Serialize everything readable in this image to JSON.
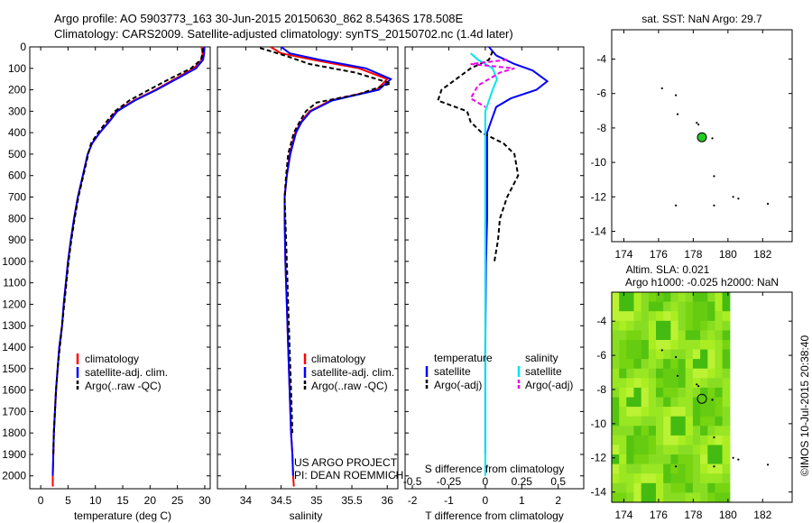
{
  "header": {
    "line1": "Argo profile: AO 5903773_163 30-Jun-2015 20150630_862 8.5436S 178.508E",
    "line2": "Climatology: CARS2009. Satellite-adjusted climatology: synTS_20150702.nc (1.4d later)"
  },
  "credit": {
    "project": "US ARGO PROJECT",
    "pi": "PI: DEAN ROEMMICH"
  },
  "stamp": "©IMOS 10-Jul-2015 20:38:40",
  "colors": {
    "clim": "#ff0000",
    "sat": "#0000ff",
    "argo": "#000000",
    "sat_s": "#00e5ee",
    "argo_s": "#ee00ee",
    "dot": "#22cc22"
  },
  "chart_data": [
    {
      "type": "line",
      "id": "temperature",
      "xlabel": "temperature (deg C)",
      "ylabel": "",
      "xlim": [
        -2,
        31
      ],
      "ylim": [
        2060,
        0
      ],
      "xticks": [
        0,
        5,
        10,
        15,
        20,
        25,
        30
      ],
      "yticks": [
        0,
        100,
        200,
        300,
        400,
        500,
        600,
        700,
        800,
        900,
        1000,
        1100,
        1200,
        1300,
        1400,
        1500,
        1600,
        1700,
        1800,
        1900,
        2000
      ],
      "legend": [
        "climatology",
        "satellite-adj. clim.",
        "Argo(..raw -QC)"
      ],
      "series": [
        {
          "name": "climatology",
          "role": "clim",
          "x": [
            29.4,
            29.6,
            29.5,
            28.0,
            24.5,
            21.0,
            17.0,
            13.8,
            12.4,
            10.8,
            9.4,
            8.6,
            7.7,
            6.8,
            6.1,
            5.5,
            5.0,
            4.6,
            4.2,
            3.9,
            3.4,
            3.1,
            2.8,
            2.6,
            2.4,
            2.3,
            2.2,
            2.2
          ],
          "y": [
            0,
            30,
            60,
            100,
            150,
            200,
            250,
            300,
            350,
            400,
            450,
            500,
            600,
            700,
            800,
            900,
            1000,
            1100,
            1200,
            1300,
            1400,
            1500,
            1600,
            1700,
            1800,
            1900,
            2000,
            2050
          ]
        },
        {
          "name": "satellite-adj. clim.",
          "role": "sat",
          "x": [
            29.9,
            29.9,
            29.7,
            28.4,
            24.8,
            21.2,
            17.2,
            14.0,
            12.5,
            10.8,
            9.4,
            8.6,
            7.7,
            6.8,
            6.1,
            5.5,
            5.0,
            4.6,
            4.2,
            3.9,
            3.4,
            3.1,
            2.8,
            2.6,
            2.4,
            2.3,
            2.2
          ],
          "y": [
            0,
            30,
            60,
            100,
            150,
            200,
            250,
            300,
            350,
            400,
            450,
            500,
            600,
            700,
            800,
            900,
            1000,
            1100,
            1200,
            1300,
            1400,
            1500,
            1600,
            1700,
            1800,
            1900,
            2000
          ]
        },
        {
          "name": "Argo(..raw -QC)",
          "role": "argo",
          "dash": true,
          "x": [
            29.7,
            29.6,
            29.3,
            27.5,
            23.5,
            19.8,
            16.2,
            13.6,
            12.0,
            10.5,
            9.2,
            8.7,
            7.8,
            6.9,
            6.2,
            5.6,
            5.1,
            4.7,
            4.3,
            3.9,
            3.5,
            3.1,
            2.8,
            2.6,
            2.4,
            2.3
          ],
          "y": [
            5,
            30,
            60,
            100,
            150,
            200,
            250,
            300,
            350,
            400,
            450,
            500,
            600,
            700,
            800,
            900,
            1000,
            1100,
            1200,
            1300,
            1400,
            1500,
            1600,
            1700,
            1800,
            1900
          ]
        }
      ]
    },
    {
      "type": "line",
      "id": "salinity",
      "xlabel": "salinity",
      "ylabel": "",
      "xlim": [
        33.6,
        36.15
      ],
      "ylim": [
        2060,
        0
      ],
      "xticks": [
        34,
        34.5,
        35,
        35.5,
        36
      ],
      "xticklabels": [
        "34",
        "34.5",
        "35",
        "35.5",
        "36"
      ],
      "legend": [
        "climatology",
        "satellite-adj. clim.",
        "Argo(..raw -QC)"
      ],
      "series": [
        {
          "name": "climatology",
          "role": "clim",
          "x": [
            34.35,
            34.5,
            34.95,
            35.6,
            36.0,
            35.85,
            35.2,
            34.9,
            34.78,
            34.7,
            34.62,
            34.58,
            34.55,
            34.55,
            34.56,
            34.58,
            34.6,
            34.62,
            34.64,
            34.66,
            34.67,
            34.68
          ],
          "y": [
            0,
            30,
            60,
            100,
            150,
            200,
            250,
            300,
            350,
            400,
            500,
            600,
            700,
            800,
            1000,
            1200,
            1400,
            1600,
            1800,
            1900,
            2000,
            2050
          ]
        },
        {
          "name": "satellite-adj. clim.",
          "role": "sat",
          "x": [
            34.5,
            34.62,
            35.05,
            35.7,
            36.05,
            35.88,
            35.22,
            34.92,
            34.79,
            34.71,
            34.63,
            34.58,
            34.55,
            34.55,
            34.56,
            34.58,
            34.6,
            34.62,
            34.64,
            34.66,
            34.67
          ],
          "y": [
            0,
            30,
            60,
            100,
            150,
            200,
            250,
            300,
            350,
            400,
            500,
            600,
            700,
            800,
            1000,
            1200,
            1400,
            1600,
            1800,
            1900,
            2000
          ]
        },
        {
          "name": "Argo(..raw -QC)",
          "role": "argo",
          "dash": true,
          "x": [
            34.2,
            34.55,
            34.9,
            35.55,
            36.05,
            35.6,
            35.0,
            34.85,
            34.76,
            34.68,
            34.6,
            34.57,
            34.55,
            34.56,
            34.58,
            34.6,
            34.62,
            34.64,
            34.66
          ],
          "y": [
            5,
            40,
            80,
            120,
            170,
            220,
            260,
            300,
            350,
            400,
            500,
            600,
            700,
            800,
            1000,
            1200,
            1400,
            1600,
            1800
          ]
        }
      ]
    },
    {
      "type": "line",
      "id": "difference",
      "xlabel": "T difference from climatology",
      "xlabel2": "S difference from climatology",
      "xlim": [
        -2.2,
        2.7
      ],
      "ylim": [
        2060,
        0
      ],
      "xticks": [
        -2,
        -1,
        0,
        1,
        2
      ],
      "xticklabels": [
        "-2",
        "-1",
        "0",
        "1",
        "2"
      ],
      "sticks": [
        -0.5,
        -0.25,
        0,
        0.25,
        0.5
      ],
      "sticklabels": [
        "-0.5",
        "-0.25",
        "0",
        "0.25",
        "0.5"
      ],
      "legend_titles": [
        "temperature",
        "salinity"
      ],
      "legend": [
        "satellite",
        "Argo(-adj)",
        "satellite",
        "Argo(-adj)"
      ],
      "series": [
        {
          "name": "T satellite",
          "role": "sat",
          "x": [
            0.1,
            0.3,
            0.8,
            1.3,
            1.7,
            1.4,
            0.7,
            0.3,
            0.15,
            0.05,
            0.05,
            0.05,
            0.02,
            0.0,
            0.0,
            0.0
          ],
          "y": [
            0,
            40,
            80,
            110,
            160,
            200,
            240,
            280,
            350,
            400,
            600,
            800,
            1000,
            1400,
            1800,
            1900
          ]
        },
        {
          "name": "T Argo(-adj)",
          "role": "argo",
          "dash": true,
          "x": [
            0.2,
            0.1,
            -0.4,
            -0.8,
            -1.2,
            -1.3,
            -0.5,
            -0.4,
            -0.1,
            0.5,
            0.8,
            0.9,
            0.6,
            0.4,
            0.35,
            0.3,
            0.25
          ],
          "y": [
            20,
            60,
            100,
            150,
            200,
            250,
            300,
            350,
            400,
            450,
            500,
            600,
            700,
            800,
            900,
            950,
            1000
          ]
        },
        {
          "name": "S satellite",
          "role": "sat_s",
          "x": [
            -0.1,
            -0.05,
            0.05,
            0.08,
            0.05,
            0.0,
            0.0,
            0.0,
            0.0,
            0.0
          ],
          "y": [
            30,
            60,
            100,
            150,
            200,
            300,
            600,
            1000,
            1500,
            2000
          ]
        },
        {
          "name": "S Argo(-adj)",
          "role": "argo_s",
          "dash": true,
          "x": [
            0.15,
            -0.1,
            0.2,
            0.1,
            -0.05,
            -0.1,
            0.0
          ],
          "y": [
            60,
            80,
            100,
            120,
            180,
            240,
            280
          ]
        }
      ]
    },
    {
      "type": "scatter",
      "id": "sst_map",
      "title": "sat. SST: NaN Argo: 29.7",
      "xlim": [
        173.3,
        183.7
      ],
      "ylim": [
        -14.6,
        -2.3
      ],
      "xticks": [
        174,
        176,
        178,
        180,
        182
      ],
      "yticks": [
        -4,
        -6,
        -8,
        -10,
        -12,
        -14
      ],
      "profile": {
        "lon": 178.5,
        "lat": -8.54
      },
      "islands": [
        [
          176.2,
          -5.7
        ],
        [
          177.0,
          -6.1
        ],
        [
          177.1,
          -7.2
        ],
        [
          178.2,
          -7.7
        ],
        [
          178.3,
          -7.8
        ],
        [
          179.1,
          -8.6
        ],
        [
          179.2,
          -10.8
        ],
        [
          180.3,
          -12.0
        ],
        [
          180.6,
          -12.1
        ],
        [
          182.3,
          -12.4
        ],
        [
          177.0,
          -12.5
        ],
        [
          179.2,
          -12.5
        ]
      ]
    },
    {
      "type": "heatmap",
      "id": "sla_map",
      "title": "Altim. SLA: 0.021",
      "subtitle": "Argo h1000: -0.025 h2000: NaN",
      "xlim": [
        173.3,
        183.7
      ],
      "ylim": [
        -14.6,
        -2.3
      ],
      "data_xlim": [
        173.3,
        180.1
      ],
      "xticks": [
        174,
        176,
        178,
        180,
        182
      ],
      "yticks": [
        -4,
        -6,
        -8,
        -10,
        -12,
        -14
      ],
      "profile": {
        "lon": 178.5,
        "lat": -8.54
      },
      "islands": [
        [
          176.2,
          -5.7
        ],
        [
          177.0,
          -6.1
        ],
        [
          177.1,
          -7.2
        ],
        [
          178.2,
          -7.7
        ],
        [
          178.3,
          -7.8
        ],
        [
          179.1,
          -8.6
        ],
        [
          179.2,
          -10.8
        ],
        [
          180.3,
          -12.0
        ],
        [
          180.6,
          -12.1
        ],
        [
          182.3,
          -12.4
        ],
        [
          177.0,
          -12.5
        ],
        [
          179.2,
          -12.5
        ]
      ]
    }
  ]
}
